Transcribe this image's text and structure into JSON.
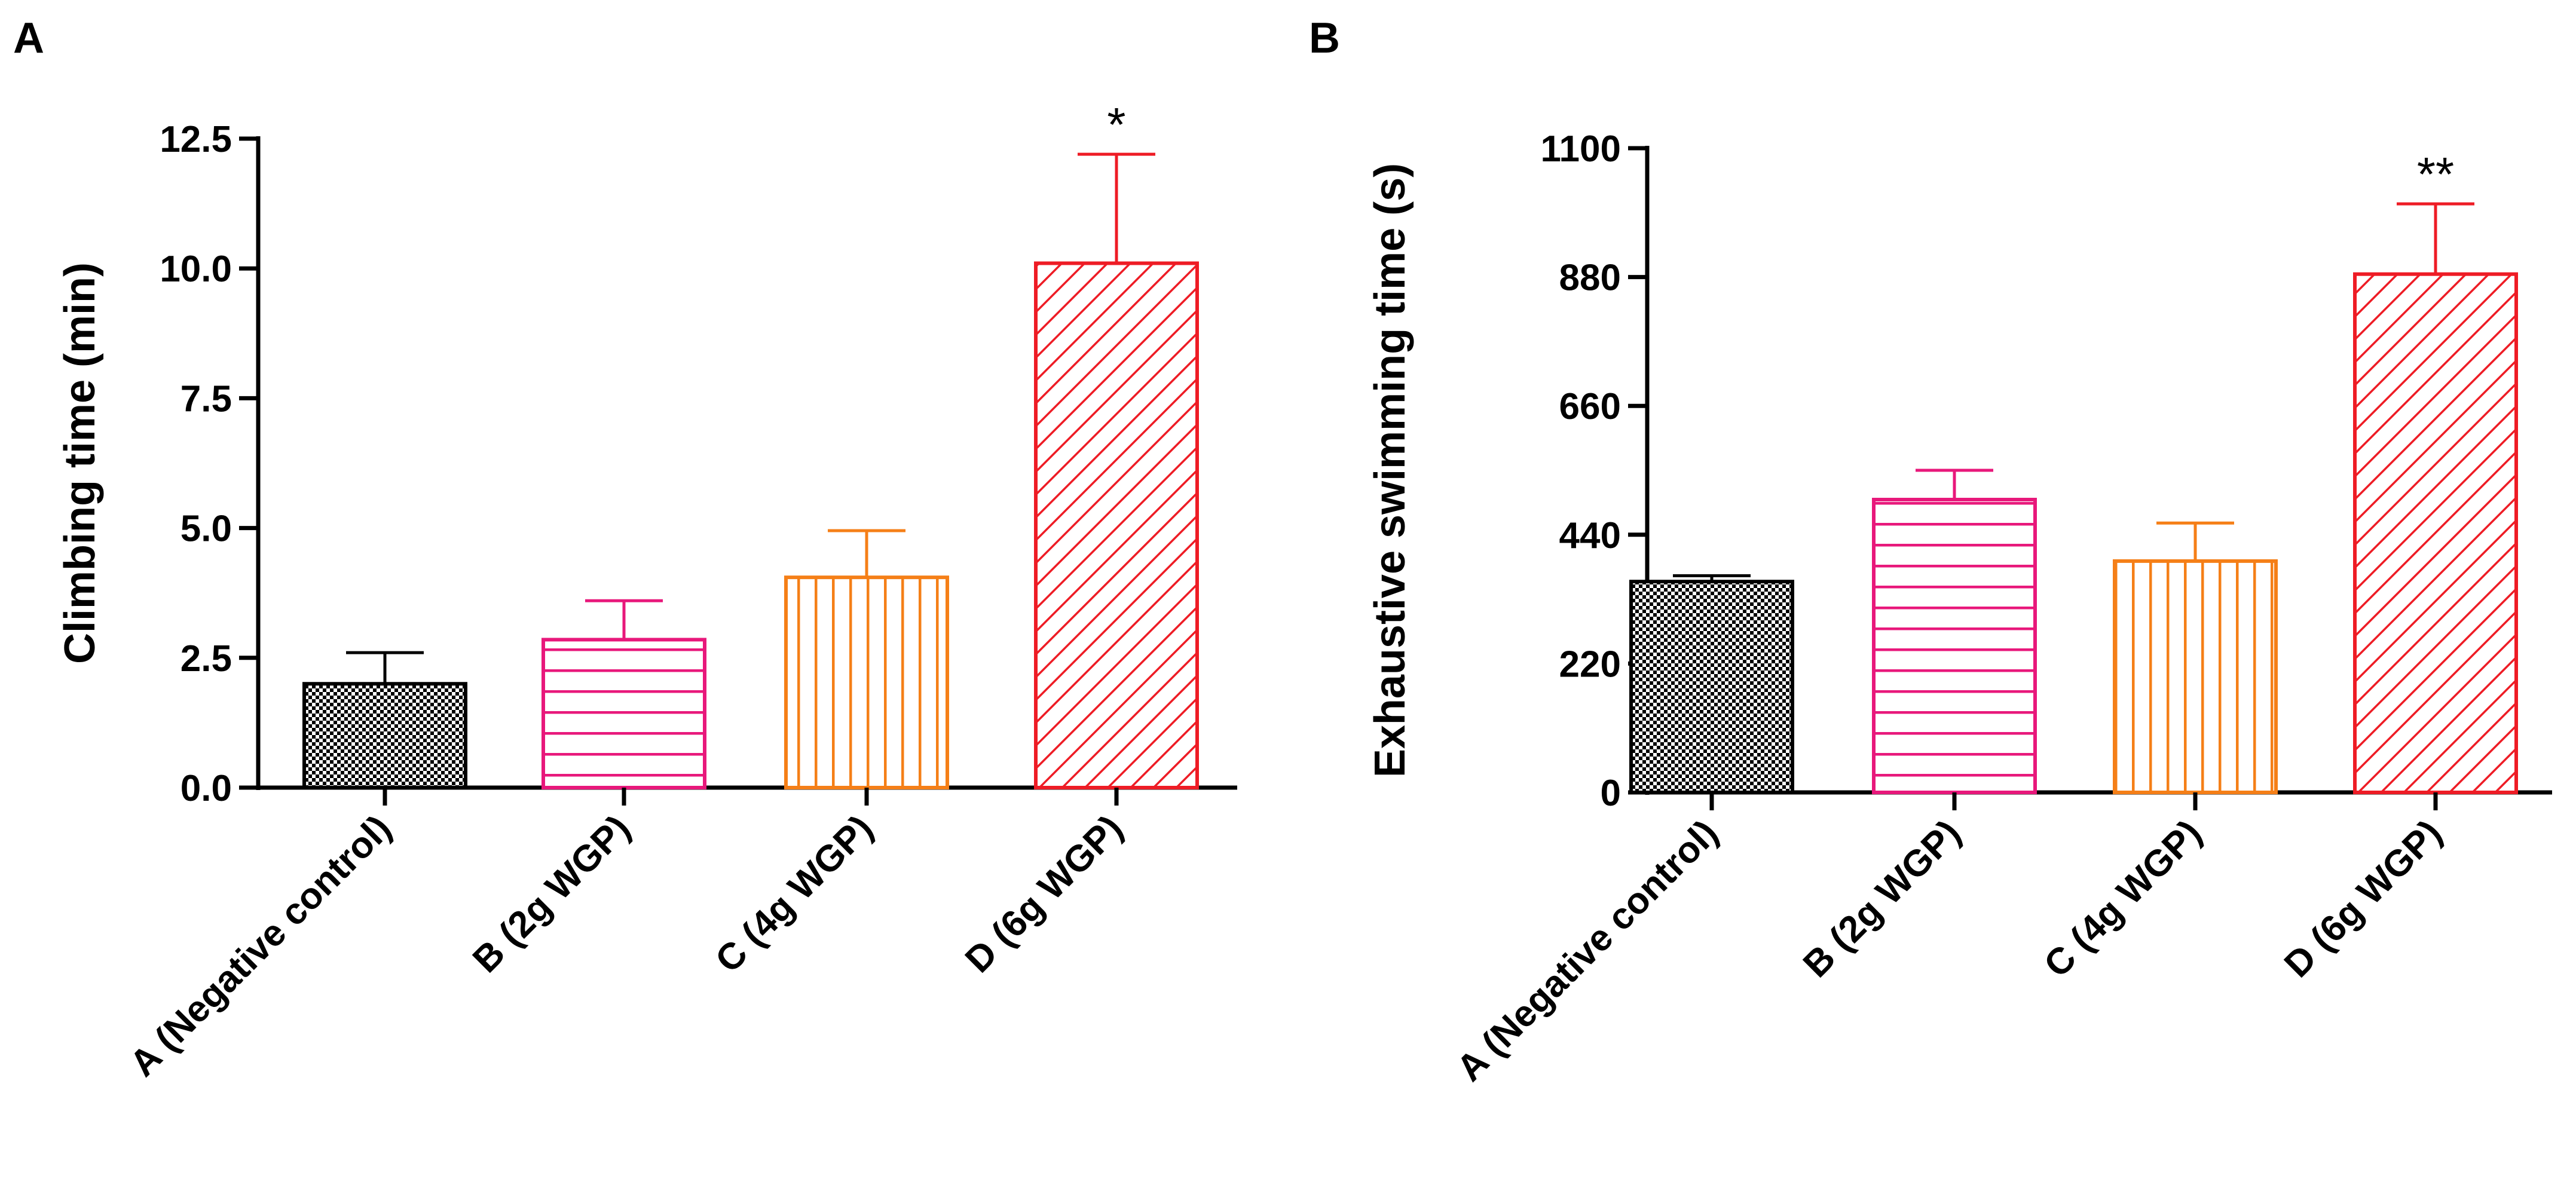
{
  "colors": {
    "negative": "#000000",
    "wgp2": "#e8187b",
    "wgp4": "#f57f17",
    "wgp6": "#ee1c25"
  },
  "chart_data": [
    {
      "panel": "A",
      "type": "bar",
      "title": "",
      "xlabel": "",
      "ylabel": "Climbing time (min)",
      "ylim": [
        0,
        12.5
      ],
      "yticks": [
        "0.0",
        "2.5",
        "5.0",
        "7.5",
        "10.0",
        "12.5"
      ],
      "categories": [
        "A (Negative control)",
        "B (2g WGP)",
        "C (4g WGP)",
        "D (6g WGP)"
      ],
      "values": [
        2.0,
        2.85,
        4.05,
        10.1
      ],
      "errors": [
        0.6,
        0.75,
        0.9,
        2.1
      ],
      "patterns": [
        "checker",
        "horizontal",
        "vertical",
        "diagonal"
      ],
      "annotations": [
        "",
        "",
        "",
        "*"
      ]
    },
    {
      "panel": "B",
      "type": "bar",
      "title": "",
      "xlabel": "",
      "ylabel": "Exhaustive swimming time (s)",
      "ylim": [
        0,
        1100
      ],
      "yticks": [
        "0",
        "220",
        "440",
        "660",
        "880",
        "1100"
      ],
      "categories": [
        "A (Negative control)",
        "B (2g WGP)",
        "C (4g WGP)",
        "D (6g WGP)"
      ],
      "values": [
        360,
        500,
        395,
        885
      ],
      "errors": [
        10,
        50,
        65,
        120
      ],
      "patterns": [
        "checker",
        "horizontal",
        "vertical",
        "diagonal"
      ],
      "annotations": [
        "",
        "",
        "",
        "**"
      ]
    }
  ]
}
